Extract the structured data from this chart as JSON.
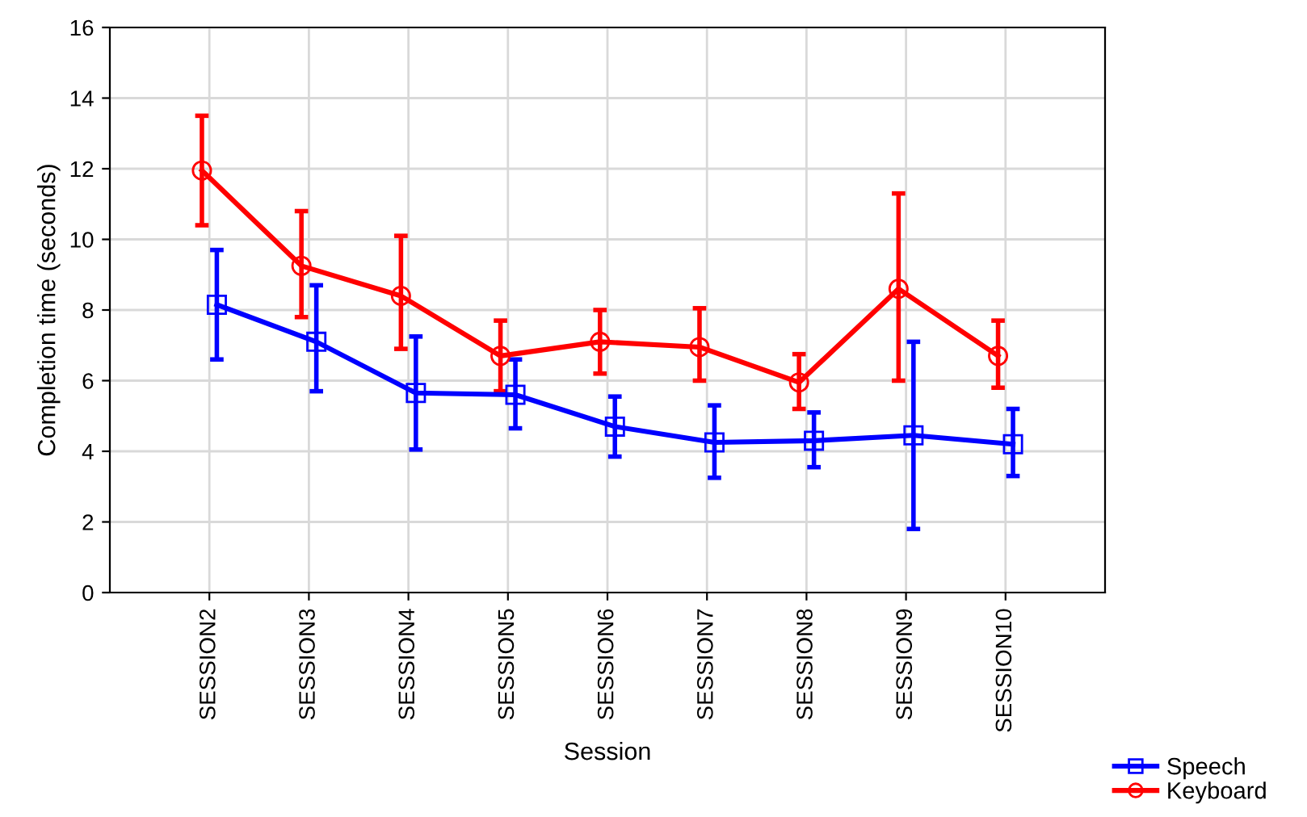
{
  "chart_data": {
    "type": "line",
    "xlabel": "Session",
    "ylabel": "Completion time (seconds)",
    "categories": [
      "SESSION2",
      "SESSION3",
      "SESSION4",
      "SESSION5",
      "SESSION6",
      "SESSION7",
      "SESSION8",
      "SESSION9",
      "SESSION10"
    ],
    "series": [
      {
        "name": "Speech",
        "color": "#0000ff",
        "marker": "square",
        "values": [
          8.15,
          7.1,
          5.65,
          5.6,
          4.7,
          4.25,
          4.3,
          4.45,
          4.2
        ],
        "errors": [
          [
            6.6,
            9.7
          ],
          [
            5.7,
            8.7
          ],
          [
            4.05,
            7.25
          ],
          [
            4.65,
            6.6
          ],
          [
            3.85,
            5.55
          ],
          [
            3.25,
            5.3
          ],
          [
            3.55,
            5.1
          ],
          [
            1.8,
            7.1
          ],
          [
            3.3,
            5.2
          ]
        ]
      },
      {
        "name": "Keyboard",
        "color": "#ff0000",
        "marker": "circle",
        "values": [
          11.95,
          9.25,
          8.4,
          6.7,
          7.1,
          6.95,
          5.95,
          8.6,
          6.7
        ],
        "errors": [
          [
            10.4,
            13.5
          ],
          [
            7.8,
            10.8
          ],
          [
            6.9,
            10.1
          ],
          [
            5.7,
            7.7
          ],
          [
            6.2,
            8.0
          ],
          [
            6.0,
            8.05
          ],
          [
            5.2,
            6.75
          ],
          [
            6.0,
            11.3
          ],
          [
            5.8,
            7.7
          ]
        ]
      }
    ],
    "ylim": [
      0,
      16
    ],
    "yticks": [
      0,
      2,
      4,
      6,
      8,
      10,
      12,
      14,
      16
    ],
    "grid": true,
    "legend": "bottom right",
    "line_style": "solid"
  }
}
